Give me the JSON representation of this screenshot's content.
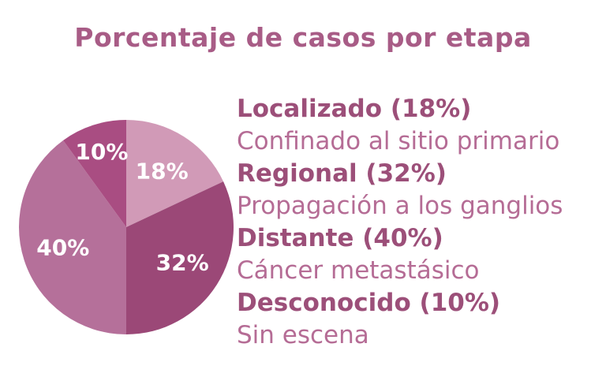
{
  "title": "Porcentaje de casos por etapa",
  "chart_data": {
    "type": "pie",
    "title": "Porcentaje de casos por etapa",
    "unit": "%",
    "slices": [
      {
        "name": "Localizado",
        "value": 18,
        "label": "18%",
        "color": "#d19ab7"
      },
      {
        "name": "Regional",
        "value": 32,
        "label": "32%",
        "color": "#9b4877"
      },
      {
        "name": "Distante",
        "value": 40,
        "label": "40%",
        "color": "#b5709a"
      },
      {
        "name": "Desconocido",
        "value": 10,
        "label": "10%",
        "color": "#a94d82"
      }
    ]
  },
  "legend": [
    {
      "heading": "Localizado (18%)",
      "description": "Confinado al sitio primario"
    },
    {
      "heading": "Regional (32%)",
      "description": "Propagación a los ganglios"
    },
    {
      "heading": "Distante (40%)",
      "description": "Cáncer metastásico"
    },
    {
      "heading": "Desconocido (10%)",
      "description": "Sin escena"
    }
  ]
}
